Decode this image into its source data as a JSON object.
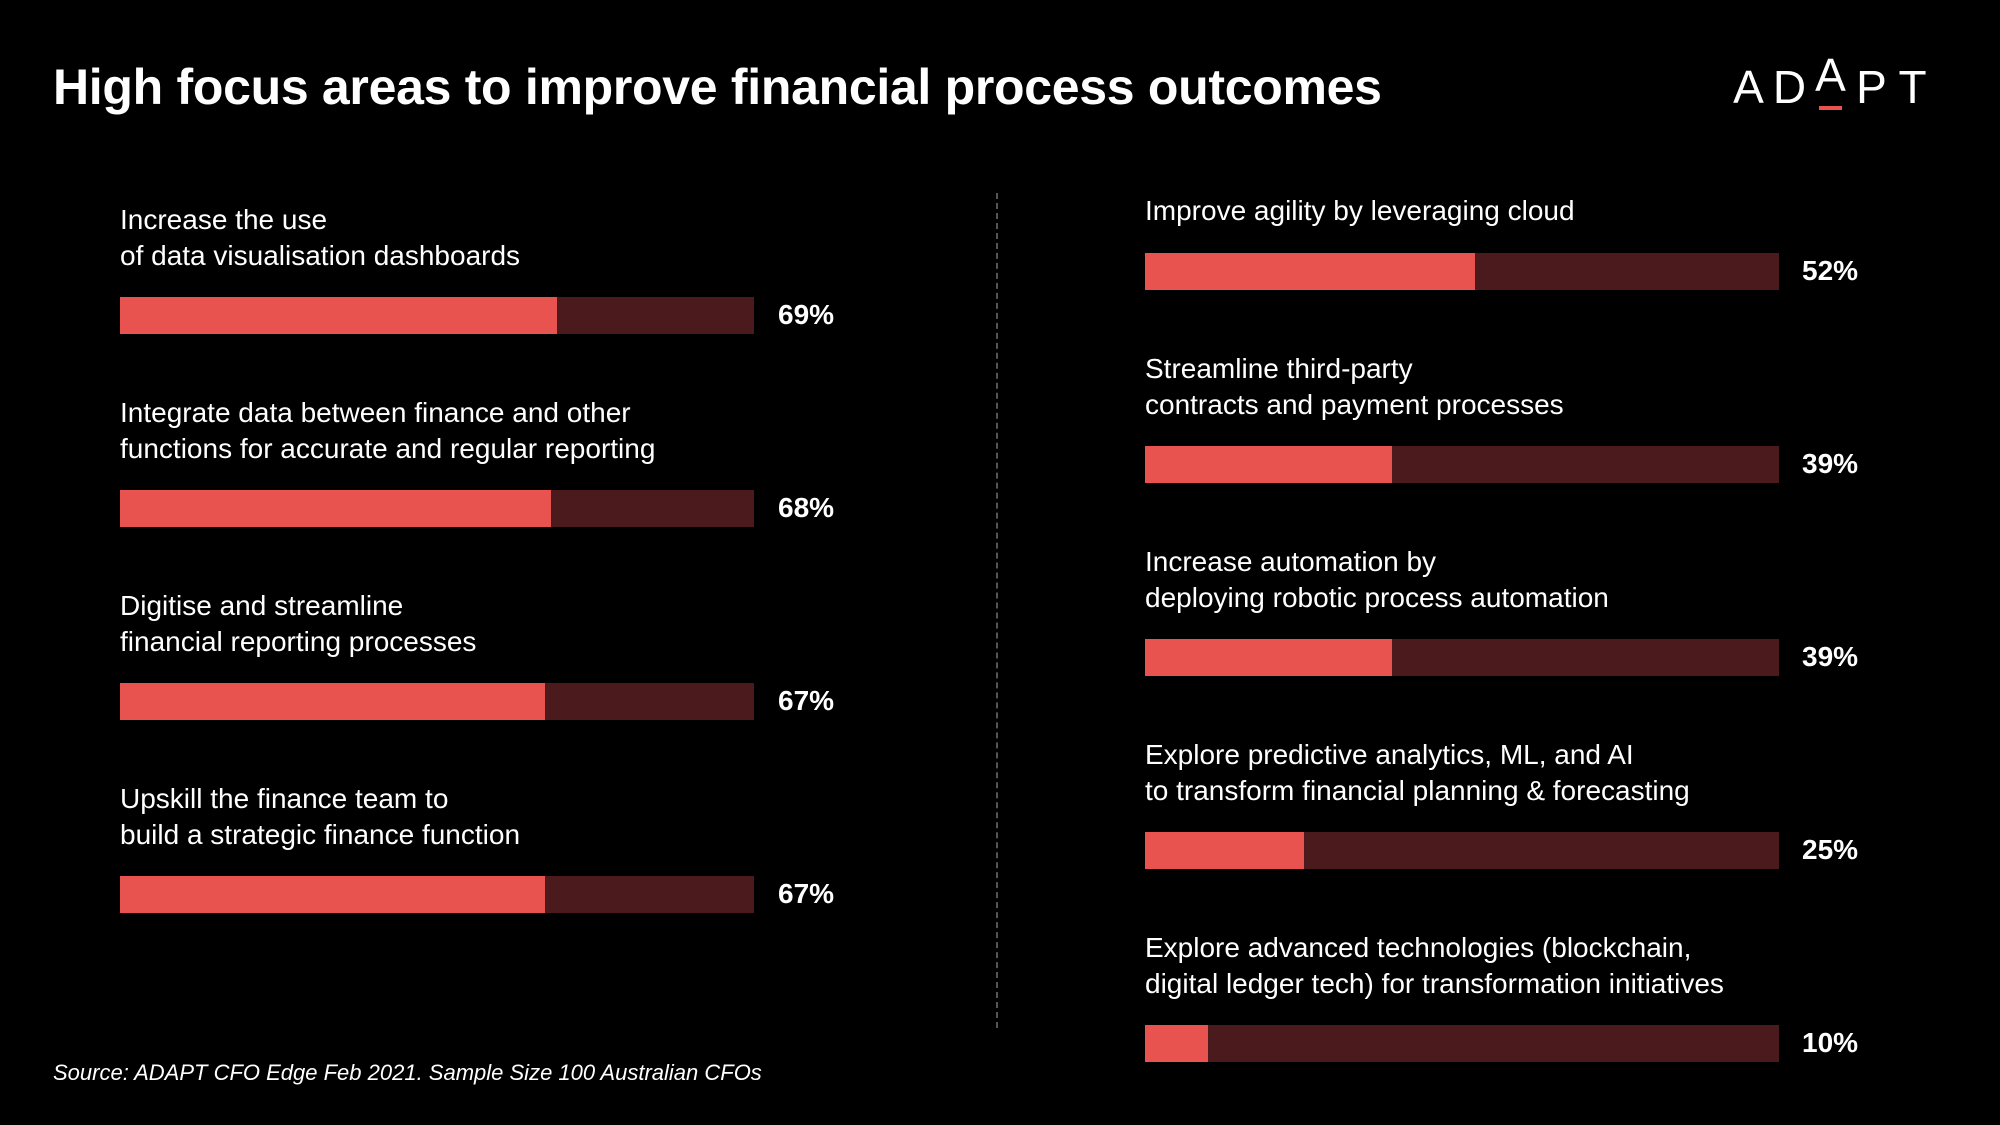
{
  "header": {
    "title": "High focus areas to improve financial process outcomes"
  },
  "logo": {
    "letters": [
      "A",
      "D",
      "A",
      "P",
      "T"
    ],
    "raised_index": 2
  },
  "colors": {
    "background": "#000000",
    "text": "#ffffff",
    "bar_fill": "#e8534f",
    "bar_track": "#4a1a1c",
    "logo_accent": "#e8534f"
  },
  "footer": {
    "source": "Source: ADAPT CFO Edge Feb 2021. Sample Size 100 Australian CFOs"
  },
  "chart_data": {
    "type": "bar",
    "orientation": "horizontal",
    "max": 100,
    "columns": [
      {
        "items": [
          {
            "label": "Increase the use\nof data visualisation dashboards",
            "value": 69,
            "value_label": "69%"
          },
          {
            "label": "Integrate data between finance and other\nfunctions for accurate and regular reporting",
            "value": 68,
            "value_label": "68%"
          },
          {
            "label": "Digitise and streamline\nfinancial reporting processes",
            "value": 67,
            "value_label": "67%"
          },
          {
            "label": "Upskill the finance team to\nbuild a strategic finance function",
            "value": 67,
            "value_label": "67%"
          }
        ]
      },
      {
        "items": [
          {
            "label": "Improve agility by leveraging cloud",
            "value": 52,
            "value_label": "52%"
          },
          {
            "label": "Streamline third-party\ncontracts and payment processes",
            "value": 39,
            "value_label": "39%"
          },
          {
            "label": "Increase automation by\ndeploying robotic process automation",
            "value": 39,
            "value_label": "39%"
          },
          {
            "label": "Explore predictive analytics, ML, and AI\nto transform financial planning & forecasting",
            "value": 25,
            "value_label": "25%"
          },
          {
            "label": "Explore advanced technologies (blockchain,\ndigital ledger tech) for transformation initiatives",
            "value": 10,
            "value_label": "10%"
          }
        ]
      }
    ]
  }
}
